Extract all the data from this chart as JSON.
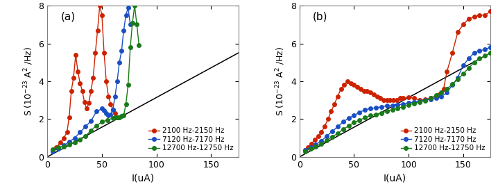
{
  "panel_a": {
    "red": {
      "x": [
        5,
        8,
        12,
        15,
        18,
        20,
        22,
        24,
        26,
        28,
        30,
        32,
        34,
        36,
        38,
        40,
        42,
        44,
        46,
        48,
        50,
        52,
        54,
        56,
        58,
        60,
        62,
        64
      ],
      "y": [
        0.35,
        0.5,
        0.75,
        1.0,
        1.3,
        2.1,
        3.5,
        4.2,
        5.4,
        4.5,
        3.9,
        3.5,
        2.9,
        2.55,
        2.85,
        3.5,
        4.2,
        5.5,
        6.7,
        8.0,
        7.5,
        5.5,
        4.0,
        3.2,
        2.8,
        2.5,
        2.3,
        2.1
      ]
    },
    "blue": {
      "x": [
        5,
        10,
        15,
        20,
        25,
        30,
        35,
        40,
        45,
        50,
        52,
        54,
        56,
        58,
        60,
        62,
        64,
        66,
        68,
        70,
        72,
        74,
        76
      ],
      "y": [
        0.3,
        0.45,
        0.6,
        0.8,
        1.0,
        1.3,
        1.6,
        1.9,
        2.4,
        2.55,
        2.45,
        2.3,
        2.2,
        2.25,
        2.5,
        3.2,
        4.0,
        5.0,
        5.6,
        6.7,
        7.5,
        7.9,
        7.0
      ]
    },
    "green": {
      "x": [
        5,
        10,
        15,
        20,
        25,
        30,
        35,
        40,
        45,
        50,
        55,
        60,
        62,
        64,
        66,
        68,
        70,
        72,
        74,
        76,
        78,
        80,
        82,
        84
      ],
      "y": [
        0.4,
        0.5,
        0.55,
        0.65,
        0.75,
        0.9,
        1.1,
        1.4,
        1.65,
        1.85,
        1.95,
        2.05,
        2.1,
        2.1,
        2.1,
        2.15,
        2.2,
        2.8,
        3.8,
        5.8,
        7.1,
        8.0,
        7.0,
        5.9
      ]
    },
    "black_line": {
      "x": [
        0,
        175
      ],
      "y": [
        0.0,
        5.5
      ]
    }
  },
  "panel_b": {
    "red": {
      "x": [
        5,
        8,
        11,
        14,
        17,
        20,
        23,
        26,
        29,
        32,
        35,
        38,
        41,
        44,
        47,
        50,
        53,
        56,
        59,
        62,
        65,
        68,
        71,
        74,
        77,
        80,
        83,
        86,
        89,
        92,
        95,
        100,
        105,
        110,
        115,
        120,
        125,
        128,
        132,
        135,
        140,
        145,
        150,
        155,
        160,
        165,
        170,
        175
      ],
      "y": [
        0.35,
        0.5,
        0.7,
        0.9,
        1.1,
        1.3,
        1.6,
        2.0,
        2.4,
        2.8,
        3.2,
        3.6,
        3.8,
        4.0,
        3.9,
        3.8,
        3.7,
        3.6,
        3.5,
        3.5,
        3.4,
        3.3,
        3.2,
        3.1,
        3.0,
        3.0,
        3.0,
        3.0,
        3.0,
        3.1,
        3.1,
        3.15,
        3.1,
        3.0,
        3.05,
        3.1,
        3.2,
        3.3,
        3.6,
        4.5,
        5.5,
        6.6,
        7.0,
        7.3,
        7.4,
        7.5,
        7.5,
        7.7
      ]
    },
    "blue": {
      "x": [
        5,
        10,
        15,
        20,
        25,
        30,
        35,
        40,
        45,
        50,
        55,
        60,
        65,
        70,
        75,
        80,
        85,
        90,
        95,
        100,
        105,
        110,
        115,
        120,
        125,
        130,
        135,
        140,
        145,
        150,
        155,
        160,
        165,
        170,
        175
      ],
      "y": [
        0.35,
        0.5,
        0.65,
        0.85,
        1.1,
        1.35,
        1.6,
        1.85,
        2.05,
        2.2,
        2.35,
        2.5,
        2.55,
        2.6,
        2.65,
        2.7,
        2.7,
        2.75,
        2.8,
        2.85,
        2.9,
        2.95,
        3.0,
        3.05,
        3.1,
        3.2,
        3.4,
        3.8,
        4.2,
        4.85,
        5.2,
        5.5,
        5.6,
        5.7,
        5.8
      ]
    },
    "green": {
      "x": [
        5,
        10,
        15,
        20,
        25,
        30,
        35,
        40,
        45,
        50,
        55,
        60,
        65,
        70,
        75,
        80,
        85,
        90,
        95,
        100,
        105,
        110,
        115,
        120,
        125,
        130,
        135,
        140,
        145,
        150,
        155,
        160,
        165,
        170,
        175
      ],
      "y": [
        0.3,
        0.42,
        0.55,
        0.7,
        0.88,
        1.05,
        1.25,
        1.45,
        1.65,
        1.82,
        1.95,
        2.07,
        2.18,
        2.25,
        2.32,
        2.42,
        2.5,
        2.58,
        2.65,
        2.75,
        2.83,
        2.9,
        2.98,
        3.1,
        3.25,
        3.4,
        3.6,
        3.85,
        4.1,
        4.4,
        4.7,
        5.0,
        5.2,
        5.35,
        5.5
      ]
    },
    "black_line": {
      "x": [
        0,
        175
      ],
      "y": [
        0.0,
        5.5
      ]
    }
  },
  "legend_labels": [
    "2100 Hz-2150 Hz",
    "7120 Hz-7170 Hz",
    "12700 Hz-12750 Hz"
  ],
  "colors": {
    "red": "#cc2200",
    "blue": "#1a4fc4",
    "green": "#1a7a1a"
  },
  "xlabel": "I(uA)",
  "ylabel": "S (10$^{-23}$ A$^2$ /Hz)",
  "xlim": [
    0,
    175
  ],
  "ylim": [
    0,
    8
  ],
  "yticks": [
    0,
    2,
    4,
    6,
    8
  ],
  "xticks": [
    0,
    50,
    100,
    150
  ],
  "markersize": 4,
  "linewidth": 1.0
}
